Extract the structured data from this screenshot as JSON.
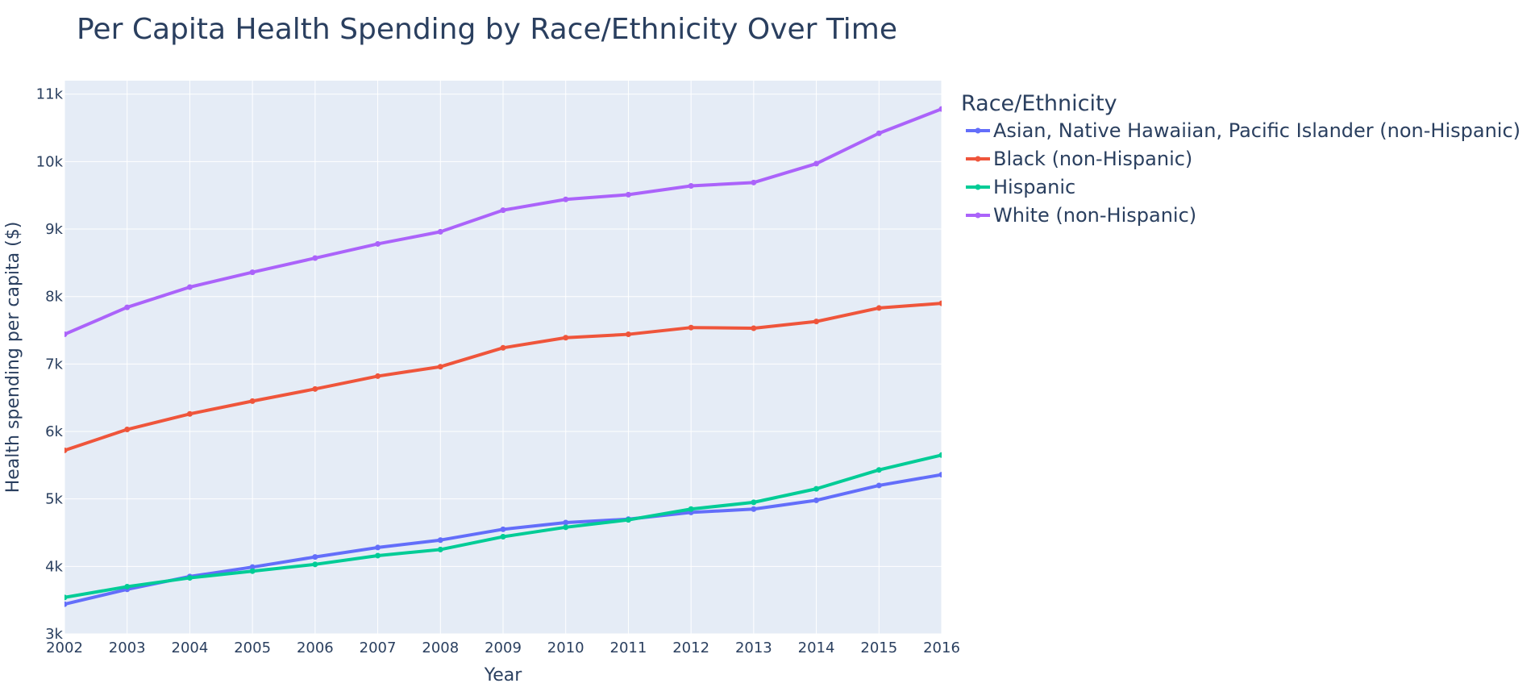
{
  "chart_data": {
    "type": "line",
    "title": "Per Capita Health Spending by Race/Ethnicity Over Time",
    "xlabel": "Year",
    "ylabel": "Health spending per capita ($)",
    "legend_title": "Race/Ethnicity",
    "legend_position": "right",
    "x": [
      2002,
      2003,
      2004,
      2005,
      2006,
      2007,
      2008,
      2009,
      2010,
      2011,
      2012,
      2013,
      2014,
      2015,
      2016
    ],
    "xlim": [
      2002,
      2016
    ],
    "ylim": [
      3000,
      11200
    ],
    "x_ticks": [
      2002,
      2003,
      2004,
      2005,
      2006,
      2007,
      2008,
      2009,
      2010,
      2011,
      2012,
      2013,
      2014,
      2015,
      2016
    ],
    "x_tick_labels": [
      "2002",
      "2003",
      "2004",
      "2005",
      "2006",
      "2007",
      "2008",
      "2009",
      "2010",
      "2011",
      "2012",
      "2013",
      "2014",
      "2015",
      "2016"
    ],
    "y_ticks": [
      3000,
      4000,
      5000,
      6000,
      7000,
      8000,
      9000,
      10000,
      11000
    ],
    "y_tick_labels": [
      "3k",
      "4k",
      "5k",
      "6k",
      "7k",
      "8k",
      "9k",
      "10k",
      "11k"
    ],
    "grid": true,
    "series": [
      {
        "name": "Asian, Native Hawaiian, Pacific Islander (non-Hispanic)",
        "color": "#636efa",
        "values": [
          3440,
          3660,
          3850,
          3990,
          4140,
          4280,
          4390,
          4550,
          4650,
          4700,
          4800,
          4850,
          4980,
          5200,
          5360
        ]
      },
      {
        "name": "Black (non-Hispanic)",
        "color": "#ef553b",
        "values": [
          5720,
          6030,
          6260,
          6450,
          6630,
          6820,
          6960,
          7240,
          7390,
          7440,
          7540,
          7530,
          7630,
          7830,
          7900
        ]
      },
      {
        "name": "Hispanic",
        "color": "#00cc96",
        "values": [
          3540,
          3700,
          3830,
          3930,
          4030,
          4160,
          4250,
          4440,
          4580,
          4690,
          4850,
          4950,
          5150,
          5430,
          5650
        ]
      },
      {
        "name": "White (non-Hispanic)",
        "color": "#ab63fa",
        "values": [
          7440,
          7840,
          8140,
          8360,
          8570,
          8780,
          8960,
          9280,
          9440,
          9510,
          9640,
          9690,
          9970,
          10420,
          10780
        ]
      }
    ]
  },
  "colors": {
    "plot_background": "#e5ecf6",
    "grid": "#ffffff",
    "text": "#2a3f5f"
  }
}
